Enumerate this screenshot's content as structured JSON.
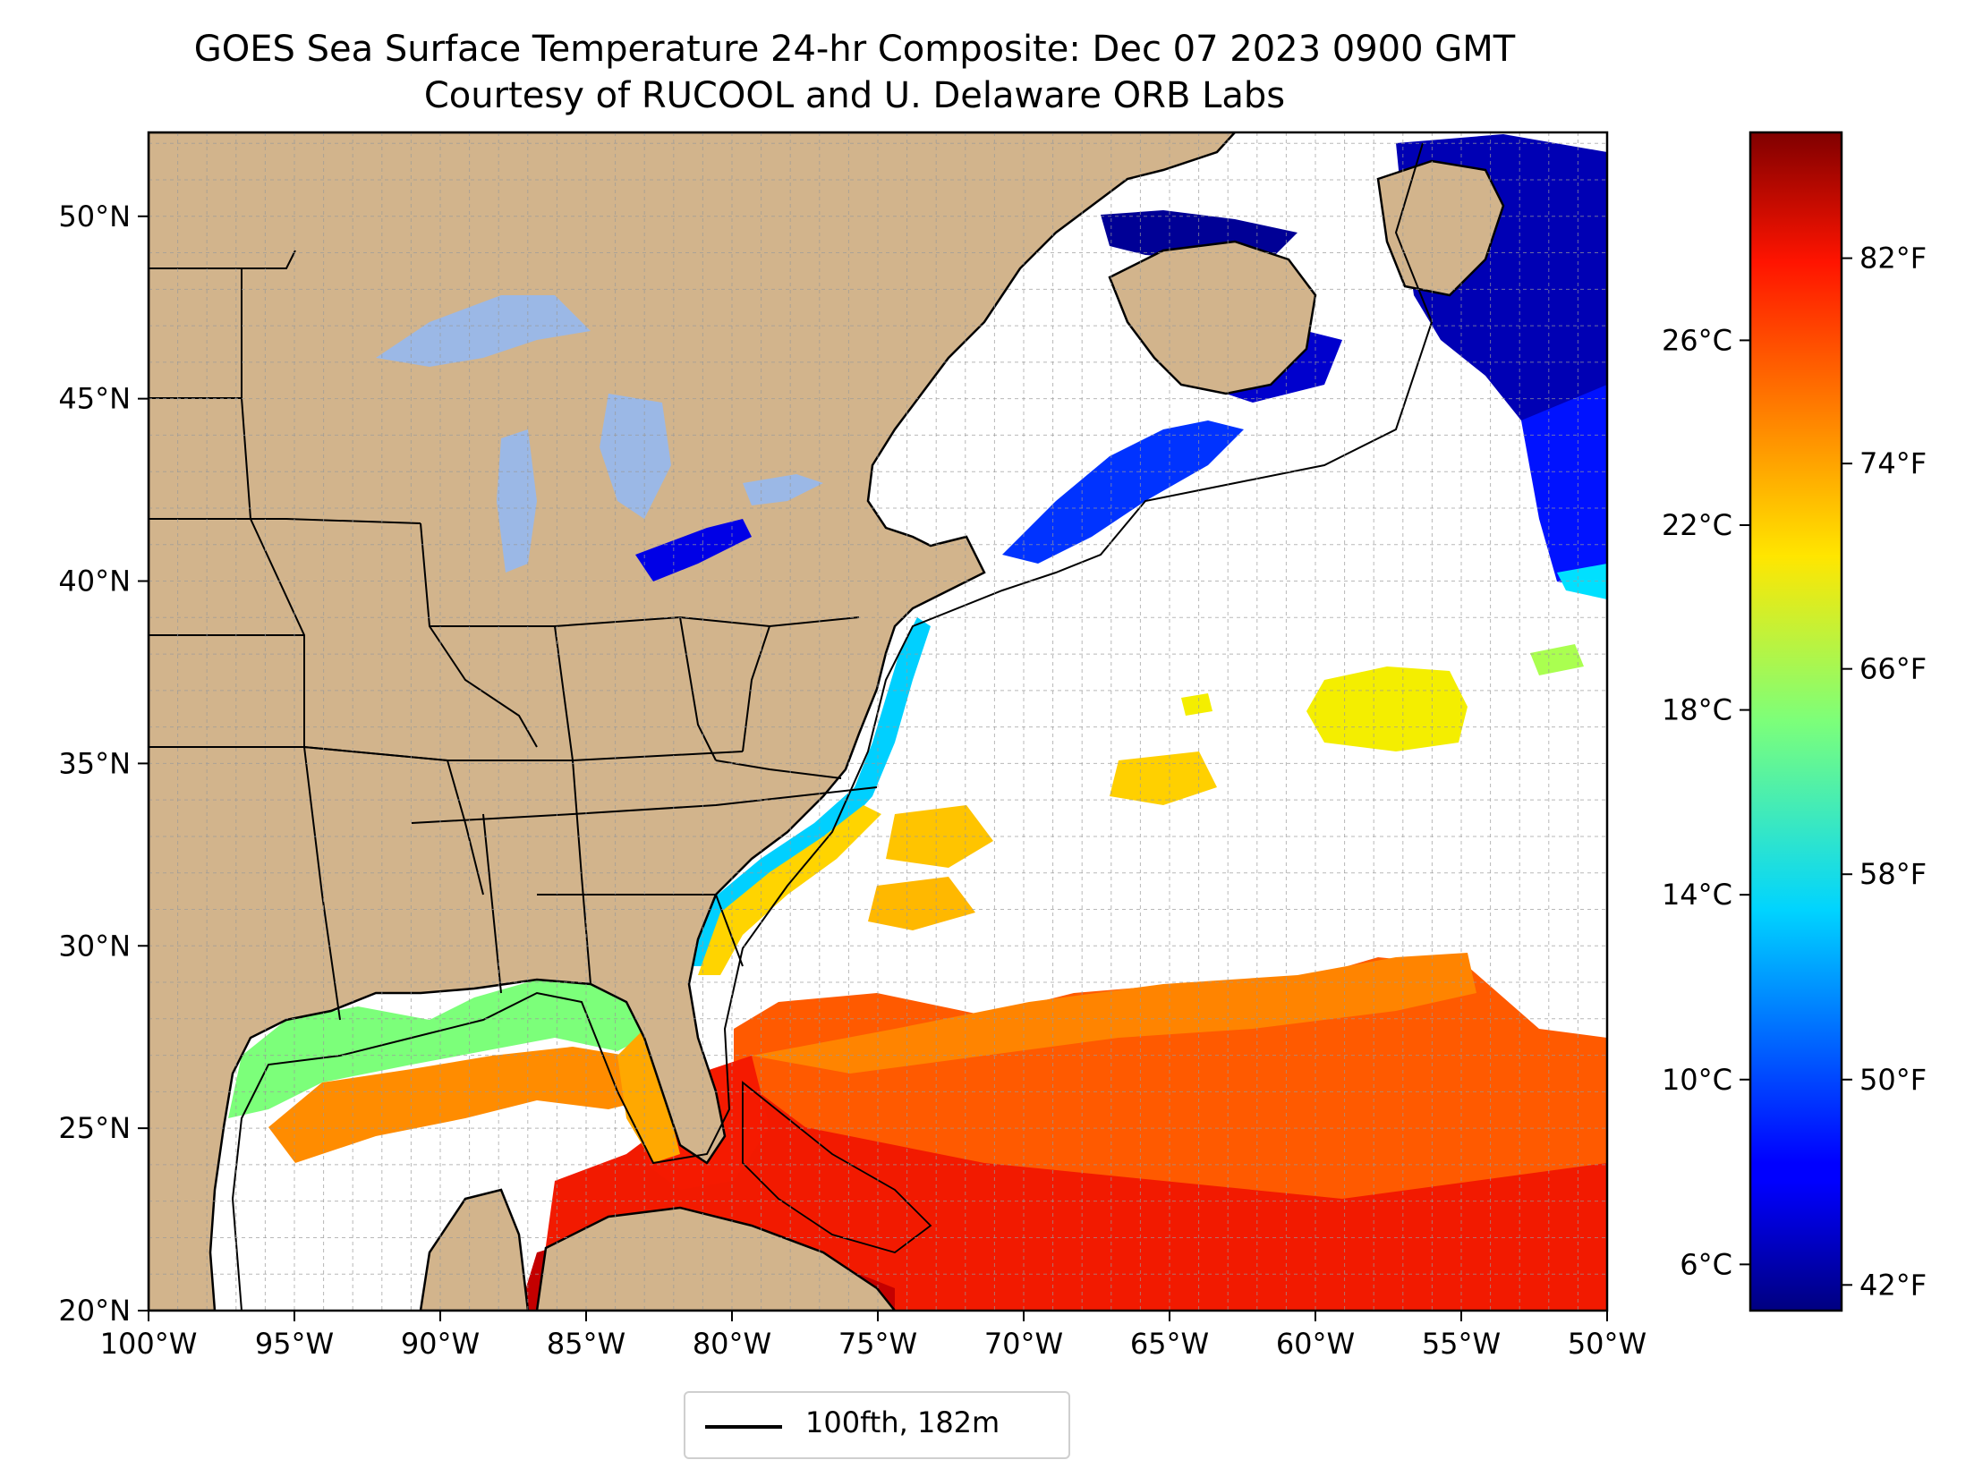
{
  "title": {
    "line1": "GOES Sea Surface Temperature 24-hr Composite: Dec 07 2023 0900 GMT",
    "line2": "Courtesy of RUCOOL and U. Delaware ORB Labs"
  },
  "map": {
    "lon_range": [
      -100,
      -50
    ],
    "lat_range": [
      20,
      52.3
    ],
    "lon_ticks": [
      {
        "value": -100,
        "label": "100°W"
      },
      {
        "value": -95,
        "label": "95°W"
      },
      {
        "value": -90,
        "label": "90°W"
      },
      {
        "value": -85,
        "label": "85°W"
      },
      {
        "value": -80,
        "label": "80°W"
      },
      {
        "value": -75,
        "label": "75°W"
      },
      {
        "value": -70,
        "label": "70°W"
      },
      {
        "value": -65,
        "label": "65°W"
      },
      {
        "value": -60,
        "label": "60°W"
      },
      {
        "value": -55,
        "label": "55°W"
      },
      {
        "value": -50,
        "label": "50°W"
      }
    ],
    "lat_ticks": [
      {
        "value": 20,
        "label": "20°N"
      },
      {
        "value": 25,
        "label": "25°N"
      },
      {
        "value": 30,
        "label": "30°N"
      },
      {
        "value": 35,
        "label": "35°N"
      },
      {
        "value": 40,
        "label": "40°N"
      },
      {
        "value": 45,
        "label": "45°N"
      },
      {
        "value": 50,
        "label": "50°N"
      }
    ],
    "grid": "dashed, every 1 degree",
    "land_color": "#d2b48c",
    "lake_color": "#9bb8e6"
  },
  "colorbar": {
    "colormap": "jet",
    "celsius_range": [
      5.0,
      30.5
    ],
    "celsius_ticks": [
      {
        "value": 6,
        "label": "6°C"
      },
      {
        "value": 10,
        "label": "10°C"
      },
      {
        "value": 14,
        "label": "14°C"
      },
      {
        "value": 18,
        "label": "18°C"
      },
      {
        "value": 22,
        "label": "22°C"
      },
      {
        "value": 26,
        "label": "26°C"
      }
    ],
    "fahrenheit_ticks": [
      {
        "value": 42,
        "label": "42°F"
      },
      {
        "value": 50,
        "label": "50°F"
      },
      {
        "value": 58,
        "label": "58°F"
      },
      {
        "value": 66,
        "label": "66°F"
      },
      {
        "value": 74,
        "label": "74°F"
      },
      {
        "value": 82,
        "label": "82°F"
      }
    ]
  },
  "legend": {
    "label": "100fth, 182m"
  }
}
